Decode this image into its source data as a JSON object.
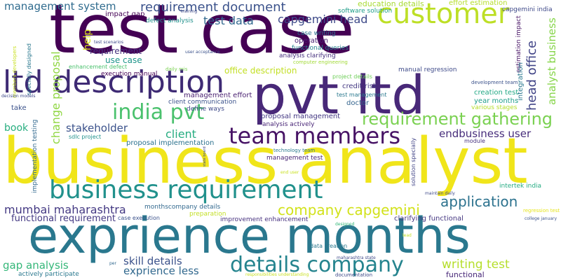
{
  "words": [
    {
      "text": "test case",
      "color": "#440154"
    },
    {
      "text": "business analyst",
      "color": "#f0e51a"
    },
    {
      "text": "exprience months",
      "color": "#2a788e"
    },
    {
      "text": "pvt ltd",
      "color": "#482878"
    },
    {
      "text": "ltd description",
      "color": "#3e2a74"
    },
    {
      "text": "customer",
      "color": "#bddf26"
    },
    {
      "text": "business requirement",
      "color": "#21918c"
    },
    {
      "text": "team members",
      "color": "#471365"
    },
    {
      "text": "india pvt",
      "color": "#4ac16d"
    },
    {
      "text": "requirement gathering",
      "color": "#7ad151"
    },
    {
      "text": "details company",
      "color": "#25848e"
    },
    {
      "text": "company capgemini",
      "color": "#d2e21b"
    },
    {
      "text": "application",
      "color": "#2c728e"
    },
    {
      "text": "requirement document",
      "color": "#3b528b"
    },
    {
      "text": "management system",
      "color": "#2f6b8e"
    },
    {
      "text": "mumbai maharashtra",
      "color": "#443983"
    },
    {
      "text": "test data",
      "color": "#31688e"
    },
    {
      "text": "capgemini head",
      "color": "#3e4a89"
    },
    {
      "text": "head office",
      "color": "#414487"
    },
    {
      "text": "analyst business",
      "color": "#86d549"
    },
    {
      "text": "change proposal",
      "color": "#90d743"
    },
    {
      "text": "stakeholder",
      "color": "#3b528b"
    },
    {
      "text": "client",
      "color": "#27ad81"
    },
    {
      "text": "endbusiness user",
      "color": "#472d7b"
    },
    {
      "text": "gap analysis",
      "color": "#35b779"
    },
    {
      "text": "skill details",
      "color": "#3b528b"
    },
    {
      "text": "exprience less",
      "color": "#31688e"
    },
    {
      "text": "writing test",
      "color": "#b5de2b"
    },
    {
      "text": "functional requirement",
      "color": "#443983"
    },
    {
      "text": "requirement",
      "color": "#46327e"
    },
    {
      "text": "use case",
      "color": "#1f958b"
    },
    {
      "text": "office description",
      "color": "#c2df23"
    },
    {
      "text": "book",
      "color": "#28ae80"
    },
    {
      "text": "help",
      "color": "#d8e219"
    },
    {
      "text": "education details",
      "color": "#a8db34"
    },
    {
      "text": "effort estimation",
      "color": "#b5de2b"
    },
    {
      "text": "impact gap",
      "color": "#440154"
    },
    {
      "text": "software solution",
      "color": "#1f9e89"
    },
    {
      "text": "capgemini india",
      "color": "#3e4989"
    },
    {
      "text": "defect analysis",
      "color": "#21918c"
    },
    {
      "text": "case writing",
      "color": "#2c728e"
    },
    {
      "text": "operation",
      "color": "#482173"
    },
    {
      "text": "functional queries",
      "color": "#26828e"
    },
    {
      "text": "analysis clarifying",
      "color": "#46307e"
    },
    {
      "text": "computer engineering",
      "color": "#a2da37"
    },
    {
      "text": "execution manual",
      "color": "#440154"
    },
    {
      "text": "enhancement defect",
      "color": "#4ac16d"
    },
    {
      "text": "daily mis",
      "color": "#7ad151"
    },
    {
      "text": "manual regression",
      "color": "#3e4a89"
    },
    {
      "text": "project details",
      "color": "#6ece58"
    },
    {
      "text": "credit risk",
      "color": "#443983"
    },
    {
      "text": "test management",
      "color": "#2a788e"
    },
    {
      "text": "doctor",
      "color": "#33638d"
    },
    {
      "text": "management effort",
      "color": "#481f70"
    },
    {
      "text": "client communication",
      "color": "#3b528b"
    },
    {
      "text": "define ways",
      "color": "#3e4989"
    },
    {
      "text": "proposal management",
      "color": "#443983"
    },
    {
      "text": "analysis actively",
      "color": "#482576"
    },
    {
      "text": "development team",
      "color": "#3b528b"
    },
    {
      "text": "creation test",
      "color": "#22a884"
    },
    {
      "text": "year months",
      "color": "#1f9e89"
    },
    {
      "text": "various stages",
      "color": "#b5de2b"
    },
    {
      "text": "estimation impact",
      "color": "#471365"
    },
    {
      "text": "integration",
      "color": "#2a788e"
    },
    {
      "text": "take",
      "color": "#3b528b"
    },
    {
      "text": "sdlc project",
      "color": "#21918c"
    },
    {
      "text": "proposal implementation",
      "color": "#2c728e"
    },
    {
      "text": "implementation testing",
      "color": "#31688e"
    },
    {
      "text": "management test",
      "color": "#482475"
    },
    {
      "text": "technology team",
      "color": "#2a788e"
    },
    {
      "text": "module",
      "color": "#46327e"
    },
    {
      "text": "intertek india",
      "color": "#25ab82"
    },
    {
      "text": "maintain daily",
      "color": "#3e4989"
    },
    {
      "text": "solution specially",
      "color": "#414487"
    },
    {
      "text": "end user",
      "color": "#c8e020"
    },
    {
      "text": "monthscompany details",
      "color": "#31688e"
    },
    {
      "text": "preparation",
      "color": "#c2df23"
    },
    {
      "text": "improvement enhancement",
      "color": "#46307e"
    },
    {
      "text": "case execution",
      "color": "#3b528b"
    },
    {
      "text": "clarifying functional",
      "color": "#453781"
    },
    {
      "text": "regression test",
      "color": "#e5e419"
    },
    {
      "text": "college january",
      "color": "#3b528b"
    },
    {
      "text": "designed",
      "color": "#35b779"
    },
    {
      "text": "lead",
      "color": "#c2df23"
    },
    {
      "text": "data creation",
      "color": "#2a788e"
    },
    {
      "text": "maharashtra state",
      "color": "#3e4989"
    },
    {
      "text": "actively participate",
      "color": "#2a788e"
    },
    {
      "text": "responsibilities understanding",
      "color": "#c8e020"
    },
    {
      "text": "documentation",
      "color": "#3e4989"
    },
    {
      "text": "functional",
      "color": "#482878"
    },
    {
      "text": "per",
      "color": "#31688e"
    },
    {
      "text": "training",
      "color": "#3e4989"
    },
    {
      "text": "test scenarios",
      "color": "#3e4989"
    },
    {
      "text": "user acceptance",
      "color": "#3b528b"
    },
    {
      "text": "members developers",
      "color": "#c8e020"
    },
    {
      "text": "specially designed",
      "color": "#2a788e"
    },
    {
      "text": "decision models",
      "color": "#3e4989"
    },
    {
      "text": "state board",
      "color": "#3e4989"
    }
  ]
}
